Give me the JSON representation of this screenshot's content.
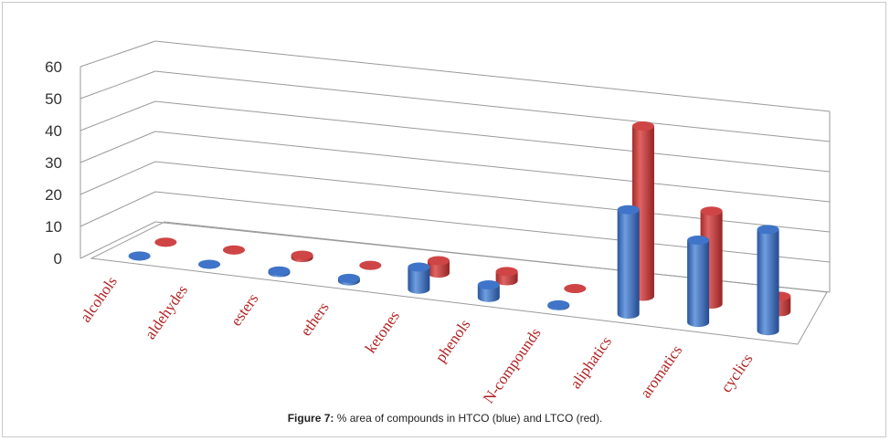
{
  "chart_data": {
    "type": "bar",
    "categories": [
      "alcohols",
      "aldehydes",
      "esters",
      "ethers",
      "ketones",
      "phenols",
      "N-compounds",
      "aliphatics",
      "aromatics",
      "cyclics"
    ],
    "series": [
      {
        "name": "HTCO",
        "values": [
          0,
          0,
          0.5,
          0.8,
          7,
          4,
          0.3,
          33,
          26,
          32
        ]
      },
      {
        "name": "LTCO",
        "values": [
          0,
          0,
          0.8,
          0,
          4,
          3,
          0,
          55,
          30,
          5
        ]
      }
    ],
    "y_ticks": [
      "0",
      "10",
      "20",
      "30",
      "40",
      "50",
      "60"
    ],
    "ylim": [
      0,
      60
    ],
    "grid": true,
    "style": "3d-cylinder",
    "colors": {
      "HTCO": "#3a6fc2",
      "LTCO": "#c63a3a"
    }
  },
  "caption": {
    "label": "Figure 7:",
    "text": "% area of compounds in HTCO (blue) and LTCO (red)."
  }
}
